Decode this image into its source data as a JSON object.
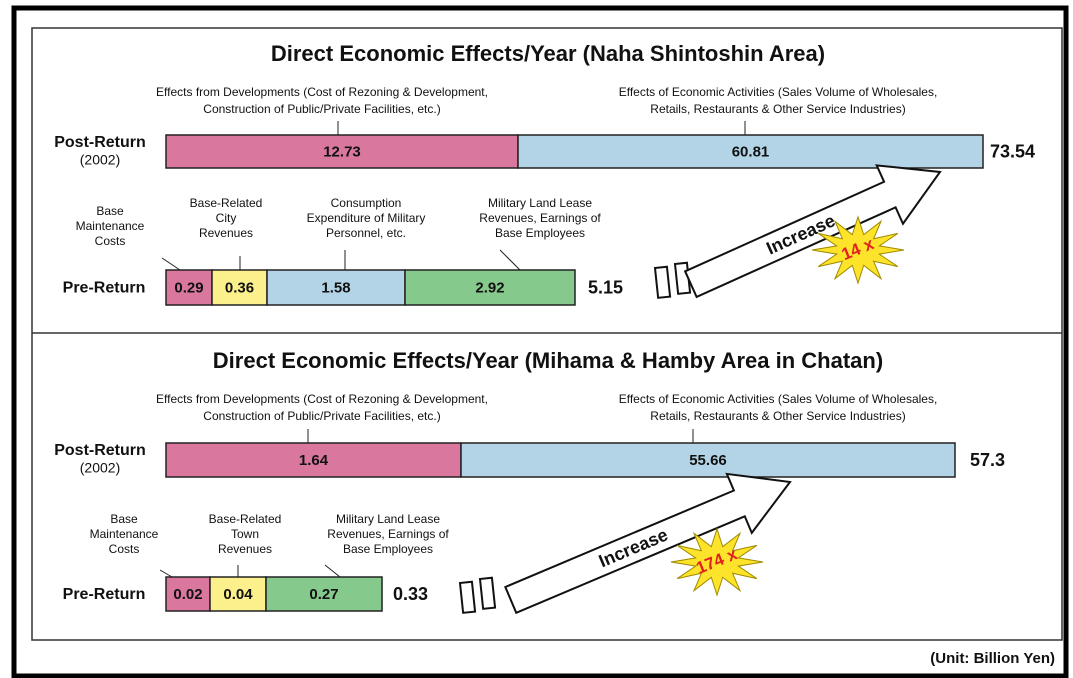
{
  "panels": [
    {
      "title": "Direct Economic Effects/Year (Naha Shintoshin Area)",
      "post": {
        "label": "Post-Return",
        "sublabel": "(2002)",
        "segments": [
          {
            "caption": [
              "Effects from Developments (Cost of Rezoning & Development,",
              "Construction of Public/Private Facilities, etc.)"
            ],
            "value": "12.73"
          },
          {
            "caption": [
              "Effects of Economic Activities (Sales Volume of Wholesales,",
              "Retails, Restaurants & Other Service Industries)"
            ],
            "value": "60.81"
          }
        ],
        "total": "73.54"
      },
      "pre": {
        "label": "Pre-Return",
        "segments": [
          {
            "caption": [
              "Base",
              "Maintenance",
              "Costs"
            ],
            "value": "0.29"
          },
          {
            "caption": [
              "Base-Related",
              "City",
              "Revenues"
            ],
            "value": "0.36"
          },
          {
            "caption": [
              "Consumption",
              "Expenditure of Military",
              "Personnel, etc."
            ],
            "value": "1.58"
          },
          {
            "caption": [
              "Military Land Lease",
              "Revenues, Earnings of",
              "Base Employees"
            ],
            "value": "2.92"
          }
        ],
        "total": "5.15"
      },
      "arrow_label": "Increase",
      "multiplier": "14 x"
    },
    {
      "title": "Direct Economic Effects/Year (Mihama & Hamby Area in Chatan)",
      "post": {
        "label": "Post-Return",
        "sublabel": "(2002)",
        "segments": [
          {
            "caption": [
              "Effects from Developments (Cost of Rezoning & Development,",
              "Construction of Public/Private Facilities, etc.)"
            ],
            "value": "1.64"
          },
          {
            "caption": [
              "Effects of Economic Activities (Sales Volume of Wholesales,",
              "Retails, Restaurants & Other Service Industries)"
            ],
            "value": "55.66"
          }
        ],
        "total": "57.3"
      },
      "pre": {
        "label": "Pre-Return",
        "segments": [
          {
            "caption": [
              "Base",
              "Maintenance",
              "Costs"
            ],
            "value": "0.02"
          },
          {
            "caption": [
              "Base-Related",
              "Town",
              "Revenues"
            ],
            "value": "0.04"
          },
          {
            "caption": [
              "Military Land Lease",
              "Revenues, Earnings of",
              "Base Employees"
            ],
            "value": "0.27"
          }
        ],
        "total": "0.33"
      },
      "arrow_label": "Increase",
      "multiplier": "174 x"
    }
  ],
  "unit": "(Unit: Billion Yen)"
}
